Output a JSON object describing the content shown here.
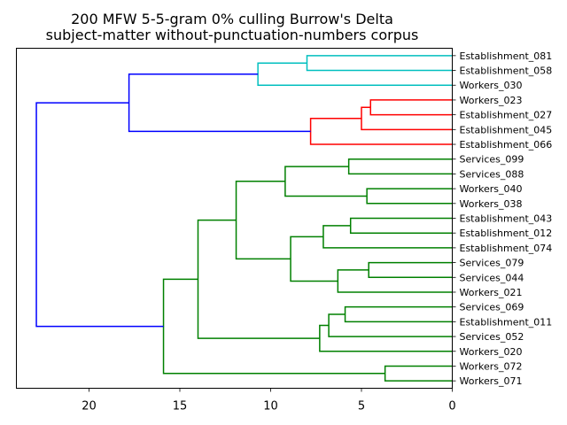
{
  "chart_data": {
    "type": "dendrogram",
    "orientation": "left",
    "title": "200 MFW 5-5-gram 0% culling Burrow's Delta",
    "subtitle": "subject-matter without-punctuation-numbers corpus",
    "xlabel": "",
    "ylabel": "",
    "xlim": [
      24,
      0
    ],
    "x_ticks": [
      20,
      15,
      10,
      5,
      0
    ],
    "grid": false,
    "colors": {
      "cyan": "#00bfbf",
      "red": "#ff0000",
      "green": "#008000",
      "blue": "#0000ff"
    },
    "leaves": [
      "Establishment_081",
      "Establishment_058",
      "Workers_030",
      "Workers_023",
      "Establishment_027",
      "Establishment_045",
      "Establishment_066",
      "Services_099",
      "Services_088",
      "Workers_040",
      "Workers_038",
      "Establishment_043",
      "Establishment_012",
      "Establishment_074",
      "Services_079",
      "Services_044",
      "Workers_021",
      "Services_069",
      "Establishment_011",
      "Services_052",
      "Workers_020",
      "Workers_072",
      "Workers_071"
    ],
    "merges": [
      {
        "id": "c1",
        "children": [
          "Establishment_081",
          "Establishment_058"
        ],
        "height": 8.0,
        "color": "cyan"
      },
      {
        "id": "c2",
        "children": [
          "c1",
          "Workers_030"
        ],
        "height": 10.7,
        "color": "cyan"
      },
      {
        "id": "r1",
        "children": [
          "Workers_023",
          "Establishment_027"
        ],
        "height": 4.5,
        "color": "red"
      },
      {
        "id": "r2",
        "children": [
          "r1",
          "Establishment_045"
        ],
        "height": 5.0,
        "color": "red"
      },
      {
        "id": "r3",
        "children": [
          "r2",
          "Establishment_066"
        ],
        "height": 7.8,
        "color": "red"
      },
      {
        "id": "b1",
        "children": [
          "c2",
          "r3"
        ],
        "height": 17.8,
        "color": "blue"
      },
      {
        "id": "g1",
        "children": [
          "Services_099",
          "Services_088"
        ],
        "height": 5.7,
        "color": "green"
      },
      {
        "id": "g2",
        "children": [
          "Workers_040",
          "Workers_038"
        ],
        "height": 4.7,
        "color": "green"
      },
      {
        "id": "g3",
        "children": [
          "g1",
          "g2"
        ],
        "height": 9.2,
        "color": "green"
      },
      {
        "id": "g4",
        "children": [
          "Establishment_043",
          "Establishment_012"
        ],
        "height": 5.6,
        "color": "green"
      },
      {
        "id": "g5",
        "children": [
          "g4",
          "Establishment_074"
        ],
        "height": 7.1,
        "color": "green"
      },
      {
        "id": "g6",
        "children": [
          "Services_079",
          "Services_044"
        ],
        "height": 4.6,
        "color": "green"
      },
      {
        "id": "g7",
        "children": [
          "g6",
          "Workers_021"
        ],
        "height": 6.3,
        "color": "green"
      },
      {
        "id": "g8",
        "children": [
          "g5",
          "g7"
        ],
        "height": 8.9,
        "color": "green"
      },
      {
        "id": "g9",
        "children": [
          "g3",
          "g8"
        ],
        "height": 11.9,
        "color": "green"
      },
      {
        "id": "g10",
        "children": [
          "Services_069",
          "Establishment_011"
        ],
        "height": 5.9,
        "color": "green"
      },
      {
        "id": "g11",
        "children": [
          "g10",
          "Services_052"
        ],
        "height": 6.8,
        "color": "green"
      },
      {
        "id": "g12",
        "children": [
          "g11",
          "Workers_020"
        ],
        "height": 7.3,
        "color": "green"
      },
      {
        "id": "g13",
        "children": [
          "g9",
          "g12"
        ],
        "height": 14.0,
        "color": "green"
      },
      {
        "id": "g14",
        "children": [
          "Workers_072",
          "Workers_071"
        ],
        "height": 3.7,
        "color": "green"
      },
      {
        "id": "g15",
        "children": [
          "g13",
          "g14"
        ],
        "height": 15.9,
        "color": "green"
      },
      {
        "id": "b2",
        "children": [
          "b1",
          "g15"
        ],
        "height": 22.9,
        "color": "blue"
      }
    ]
  }
}
